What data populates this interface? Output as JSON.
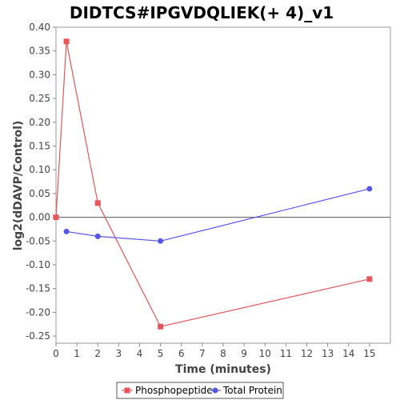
{
  "chart_data": {
    "type": "line",
    "title": "DIDTCS#IPGVDQLIEK(+ 4)_v1",
    "xlabel": "Time (minutes)",
    "ylabel": "log2(dDAVP/Control)",
    "xlim": [
      0,
      16
    ],
    "ylim": [
      -0.265,
      0.4
    ],
    "x_ticks": [
      0,
      1,
      2,
      3,
      4,
      5,
      6,
      7,
      8,
      9,
      10,
      11,
      12,
      13,
      14,
      15
    ],
    "y_ticks": [
      -0.25,
      -0.2,
      -0.15,
      -0.1,
      -0.05,
      0.0,
      0.05,
      0.1,
      0.15,
      0.2,
      0.25,
      0.3,
      0.35,
      0.4
    ],
    "y_tick_labels": [
      "-0.25",
      "-0.20",
      "-0.15",
      "-0.10",
      "-0.05",
      "0.00",
      "0.05",
      "0.10",
      "0.15",
      "0.20",
      "0.25",
      "0.30",
      "0.35",
      "0.40"
    ],
    "grid": false,
    "legend_position": "bottom",
    "series": [
      {
        "name": "Phosphopeptide",
        "color": "#e8555a",
        "marker": "square",
        "x": [
          0,
          0.5,
          2,
          5,
          15
        ],
        "y": [
          0.0,
          0.37,
          0.03,
          -0.23,
          -0.13
        ]
      },
      {
        "name": "Total Protein",
        "color": "#5555e8",
        "marker": "circle",
        "x": [
          0.5,
          2,
          5,
          15
        ],
        "y": [
          -0.03,
          -0.04,
          -0.05,
          0.06
        ]
      }
    ]
  }
}
